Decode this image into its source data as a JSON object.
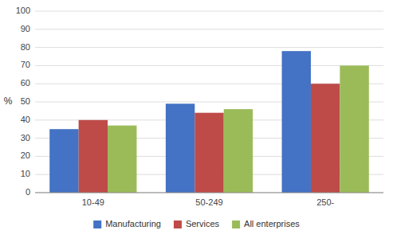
{
  "chart_data": {
    "type": "bar",
    "ylabel": "%",
    "categories": [
      "10-49",
      "50-249",
      "250-"
    ],
    "series": [
      {
        "name": "Manufacturing",
        "color": "#4472C4",
        "values": [
          35,
          49,
          78
        ]
      },
      {
        "name": "Services",
        "color": "#BE4B48",
        "values": [
          40,
          44,
          60
        ]
      },
      {
        "name": "All enterprises",
        "color": "#9BBB59",
        "values": [
          37,
          46,
          70
        ]
      }
    ],
    "ylim": [
      0,
      100
    ],
    "yticks": [
      0,
      10,
      20,
      30,
      40,
      50,
      60,
      70,
      80,
      90,
      100
    ],
    "grid": true,
    "legend": "bottom"
  }
}
